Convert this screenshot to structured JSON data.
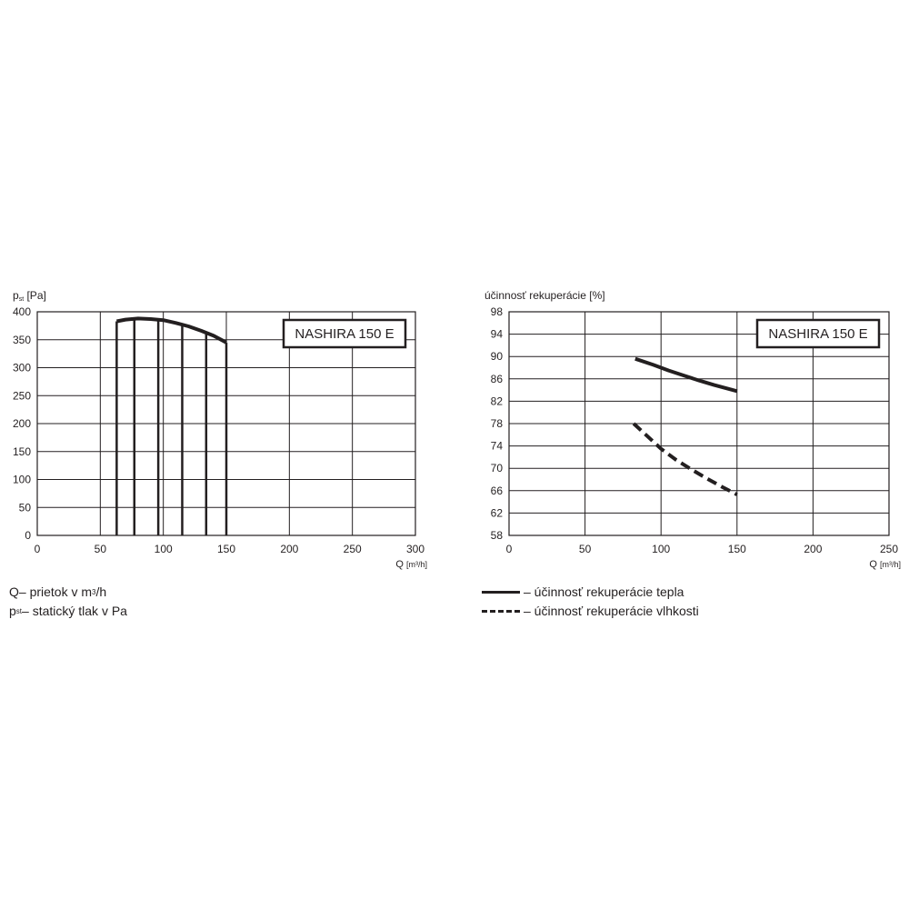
{
  "chart_data": [
    {
      "type": "line",
      "title": "NASHIRA 150 E",
      "ylabel": "p",
      "ylabel_sub": "st",
      "ylabel_unit": "[Pa]",
      "xlabel": "Q",
      "xlabel_unit": "[m³/h]",
      "xlim": [
        0,
        300
      ],
      "ylim": [
        0,
        400
      ],
      "xticks": [
        "0",
        "50",
        "100",
        "150",
        "200",
        "250",
        "300"
      ],
      "yticks": [
        "0",
        "50",
        "100",
        "150",
        "200",
        "250",
        "300",
        "350",
        "400"
      ],
      "grid": true,
      "series": [
        {
          "style": "solid",
          "x": [
            63,
            70,
            80,
            90,
            100,
            110,
            120,
            130,
            140,
            150
          ],
          "y": [
            383,
            386,
            388,
            387,
            385,
            380,
            374,
            366,
            357,
            345
          ]
        }
      ],
      "vertical_lines_x": [
        63,
        77,
        96,
        115,
        134,
        150
      ]
    },
    {
      "type": "line",
      "title": "NASHIRA 150 E",
      "ylabel": "účinnosť rekuperácie [%]",
      "xlabel": "Q",
      "xlabel_unit": "[m³/h]",
      "xlim": [
        0,
        250
      ],
      "ylim": [
        58,
        98
      ],
      "xticks": [
        "0",
        "50",
        "100",
        "150",
        "200",
        "250"
      ],
      "yticks": [
        "58",
        "62",
        "66",
        "70",
        "74",
        "78",
        "82",
        "86",
        "90",
        "94",
        "98"
      ],
      "grid": true,
      "series": [
        {
          "name": "účinnosť rekuperácie tepla",
          "style": "solid",
          "x": [
            83,
            95,
            105,
            115,
            125,
            135,
            150
          ],
          "y": [
            89.6,
            88.5,
            87.5,
            86.6,
            85.7,
            84.9,
            83.8
          ]
        },
        {
          "name": "účinnosť rekuperácie vlhkosti",
          "style": "dashed",
          "x": [
            82,
            90,
            100,
            110,
            120,
            130,
            140,
            150
          ],
          "y": [
            78,
            76,
            73.5,
            71.5,
            69.8,
            68.2,
            66.7,
            65.3
          ]
        }
      ]
    }
  ],
  "legend": {
    "left": [
      {
        "symbol": "Q",
        "text": " – prietok v m",
        "sup": "3",
        "after": "/h"
      },
      {
        "symbol": "p",
        "sub": "st",
        "text": " – statický tlak v Pa"
      }
    ],
    "right": [
      {
        "style": "solid",
        "text": "– účinnosť rekuperácie tepla"
      },
      {
        "style": "dashed",
        "text": "– účinnosť rekuperácie vlhkosti"
      }
    ]
  }
}
